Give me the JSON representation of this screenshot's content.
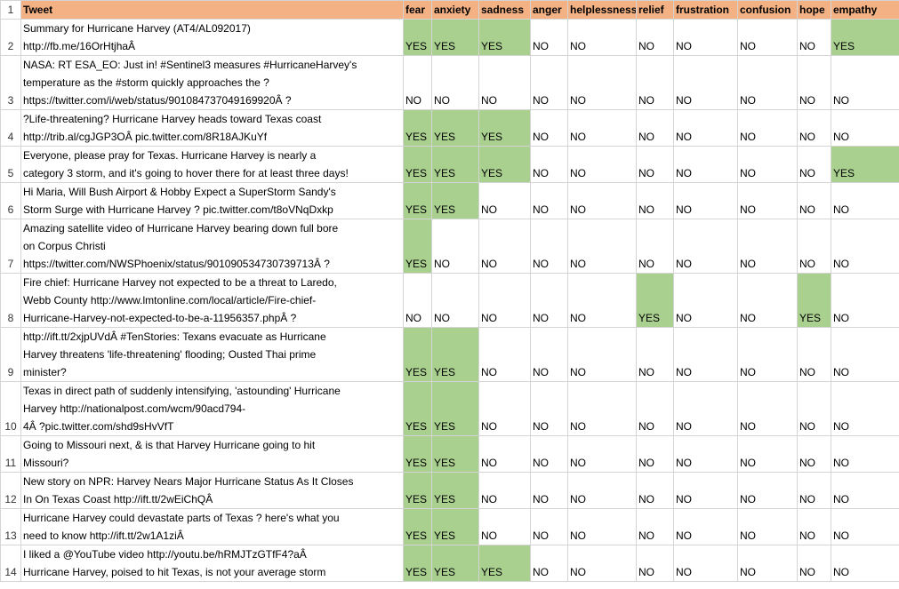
{
  "colors": {
    "header_fill": "#f4b183",
    "yes_fill": "#a9d08e",
    "grid": "#d4d4d4"
  },
  "header": {
    "row_number": "1",
    "columns": [
      "Tweet",
      "fear",
      "anxiety",
      "sadness",
      "anger",
      "helplessness",
      "relief",
      "frustration",
      "confusion",
      "hope",
      "empathy"
    ]
  },
  "rows": [
    {
      "num": "2",
      "tweet": [
        "Summary for Hurricane Harvey (AT4/AL092017)",
        "http://fb.me/16OrHtjhaÂ"
      ],
      "values": [
        "YES",
        "YES",
        "YES",
        "NO",
        "NO",
        "NO",
        "NO",
        "NO",
        "NO",
        "YES"
      ]
    },
    {
      "num": "3",
      "tweet": [
        "NASA: RT ESA_EO: Just in! #Sentinel3 measures #HurricaneHarvey's",
        "temperature as the #storm quickly approaches the ?",
        "https://twitter.com/i/web/status/901084737049169920Â ?"
      ],
      "values": [
        "NO",
        "NO",
        "NO",
        "NO",
        "NO",
        "NO",
        "NO",
        "NO",
        "NO",
        "NO"
      ]
    },
    {
      "num": "4",
      "tweet": [
        "?Life-threatening? Hurricane Harvey heads toward Texas coast",
        "http://trib.al/cgJGP3OÂ pic.twitter.com/8R18AJKuYf"
      ],
      "values": [
        "YES",
        "YES",
        "YES",
        "NO",
        "NO",
        "NO",
        "NO",
        "NO",
        "NO",
        "NO"
      ]
    },
    {
      "num": "5",
      "tweet": [
        "Everyone, please pray for Texas. Hurricane Harvey is nearly a",
        "category 3 storm, and it's going to hover there for at least three days!"
      ],
      "values": [
        "YES",
        "YES",
        "YES",
        "NO",
        "NO",
        "NO",
        "NO",
        "NO",
        "NO",
        "YES"
      ]
    },
    {
      "num": "6",
      "tweet": [
        "Hi Maria, Will Bush Airport & Hobby Expect a SuperStorm Sandy's",
        "Storm Surge with Hurricane Harvey ? pic.twitter.com/t8oVNqDxkp"
      ],
      "values": [
        "YES",
        "YES",
        "NO",
        "NO",
        "NO",
        "NO",
        "NO",
        "NO",
        "NO",
        "NO"
      ]
    },
    {
      "num": "7",
      "tweet": [
        "Amazing satellite video of Hurricane Harvey bearing down full bore",
        "on Corpus Christi",
        "https://twitter.com/NWSPhoenix/status/901090534730739713Â ?"
      ],
      "values": [
        "YES",
        "NO",
        "NO",
        "NO",
        "NO",
        "NO",
        "NO",
        "NO",
        "NO",
        "NO"
      ]
    },
    {
      "num": "8",
      "tweet": [
        "Fire chief: Hurricane Harvey not expected to be a threat to Laredo,",
        "Webb County   http://www.lmtonline.com/local/article/Fire-chief-",
        "Hurricane-Harvey-not-expected-to-be-a-11956357.phpÂ ?"
      ],
      "values": [
        "NO",
        "NO",
        "NO",
        "NO",
        "NO",
        "YES",
        "NO",
        "NO",
        "YES",
        "NO"
      ]
    },
    {
      "num": "9",
      "tweet": [
        "http://ift.tt/2xjpUVdÂ  #TenStories: Texans evacuate as Hurricane",
        "Harvey threatens 'life-threatening' flooding; Ousted Thai prime",
        "minister?"
      ],
      "values": [
        "YES",
        "YES",
        "NO",
        "NO",
        "NO",
        "NO",
        "NO",
        "NO",
        "NO",
        "NO"
      ]
    },
    {
      "num": "10",
      "tweet": [
        "Texas in direct path of suddenly intensifying, 'astounding' Hurricane",
        "Harvey http://nationalpost.com/wcm/90acd794-",
        "4Â ?pic.twitter.com/shd9sHvVfT"
      ],
      "values": [
        "YES",
        "YES",
        "NO",
        "NO",
        "NO",
        "NO",
        "NO",
        "NO",
        "NO",
        "NO"
      ]
    },
    {
      "num": "11",
      "tweet": [
        "Going to Missouri next, & is that Harvey Hurricane going to hit",
        "Missouri?"
      ],
      "values": [
        "YES",
        "YES",
        "NO",
        "NO",
        "NO",
        "NO",
        "NO",
        "NO",
        "NO",
        "NO"
      ]
    },
    {
      "num": "12",
      "tweet": [
        "New story on NPR: Harvey Nears Major Hurricane Status As It Closes",
        "In On Texas Coast http://ift.tt/2wEiChQÂ"
      ],
      "values": [
        "YES",
        "YES",
        "NO",
        "NO",
        "NO",
        "NO",
        "NO",
        "NO",
        "NO",
        "NO"
      ]
    },
    {
      "num": "13",
      "tweet": [
        "Hurricane Harvey could devastate parts of Texas ? here's what you",
        "need to know http://ift.tt/2w1A1ziÂ"
      ],
      "values": [
        "YES",
        "YES",
        "NO",
        "NO",
        "NO",
        "NO",
        "NO",
        "NO",
        "NO",
        "NO"
      ]
    },
    {
      "num": "14",
      "tweet": [
        "I liked a @YouTube video http://youtu.be/hRMJTzGTfF4?aÂ",
        "Hurricane Harvey, poised to hit Texas, is not your average storm"
      ],
      "values": [
        "YES",
        "YES",
        "YES",
        "NO",
        "NO",
        "NO",
        "NO",
        "NO",
        "NO",
        "NO"
      ]
    }
  ]
}
